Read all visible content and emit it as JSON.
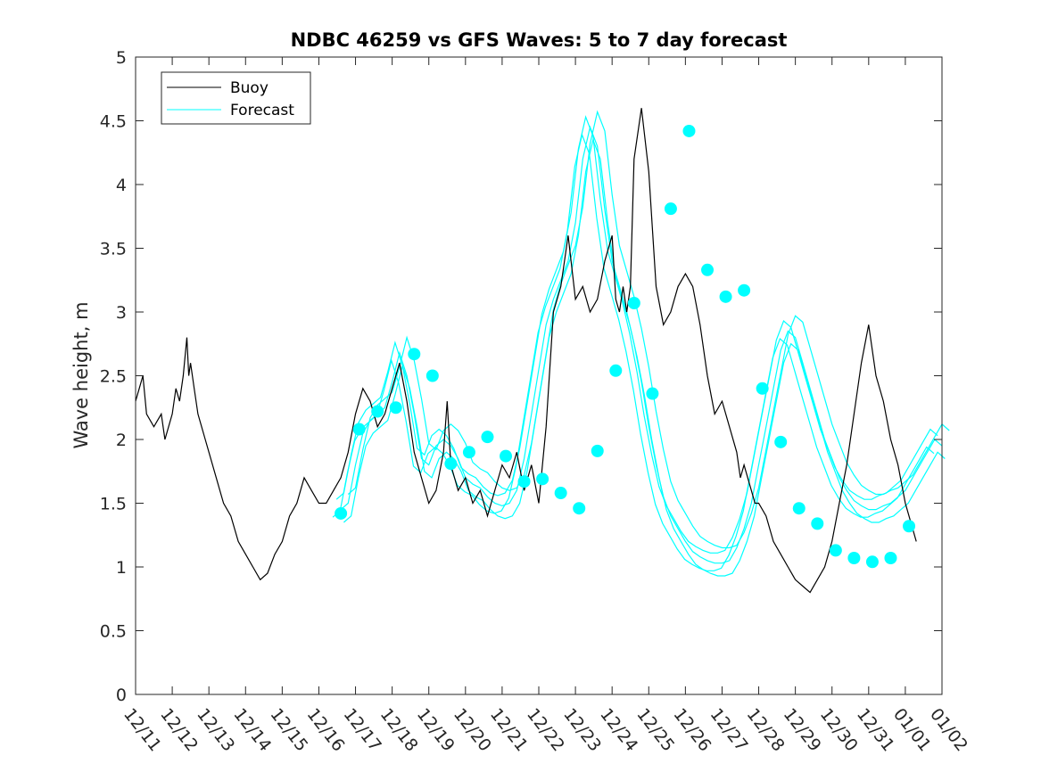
{
  "chart_data": {
    "type": "line",
    "title": "NDBC 46259 vs GFS Waves: 5 to 7 day forecast",
    "xlabel": "",
    "ylabel": "Wave height, m",
    "xlim": [
      0,
      22
    ],
    "ylim": [
      0,
      5
    ],
    "yticks": [
      "0",
      "0.5",
      "1",
      "1.5",
      "2",
      "2.5",
      "3",
      "3.5",
      "4",
      "4.5",
      "5"
    ],
    "xticks": [
      "12/11",
      "12/12",
      "12/13",
      "12/14",
      "12/15",
      "12/16",
      "12/17",
      "12/18",
      "12/19",
      "12/20",
      "12/21",
      "12/22",
      "12/23",
      "12/24",
      "12/25",
      "12/26",
      "12/27",
      "12/28",
      "12/29",
      "12/30",
      "12/31",
      "01/01",
      "01/02"
    ],
    "legend": {
      "position": "top-left",
      "entries": [
        "Buoy",
        "Forecast"
      ]
    },
    "colors": {
      "buoy": "#000000",
      "forecast": "#00ffff",
      "axis": "#262626"
    },
    "series": [
      {
        "name": "Buoy",
        "x": [
          0,
          0.1,
          0.2,
          0.3,
          0.5,
          0.7,
          0.8,
          0.9,
          1.0,
          1.1,
          1.2,
          1.3,
          1.4,
          1.45,
          1.5,
          1.6,
          1.7,
          1.8,
          1.9,
          2.0,
          2.2,
          2.4,
          2.6,
          2.8,
          3.0,
          3.2,
          3.4,
          3.6,
          3.8,
          4.0,
          4.2,
          4.4,
          4.6,
          4.8,
          5.0,
          5.2,
          5.4,
          5.6,
          5.8,
          6.0,
          6.2,
          6.4,
          6.6,
          6.8,
          7.0,
          7.2,
          7.4,
          7.6,
          7.8,
          8.0,
          8.2,
          8.4,
          8.5,
          8.6,
          8.8,
          9.0,
          9.2,
          9.4,
          9.6,
          9.8,
          10.0,
          10.2,
          10.4,
          10.6,
          10.8,
          11.0,
          11.2,
          11.4,
          11.6,
          11.8,
          12.0,
          12.2,
          12.4,
          12.6,
          12.8,
          13.0,
          13.1,
          13.2,
          13.3,
          13.4,
          13.5,
          13.6,
          13.8,
          14.0,
          14.2,
          14.4,
          14.6,
          14.8,
          15.0,
          15.2,
          15.4,
          15.6,
          15.8,
          16.0,
          16.2,
          16.4,
          16.5,
          16.6,
          16.7,
          16.8,
          16.9,
          17.0,
          17.2,
          17.4,
          17.6,
          17.8,
          18.0,
          18.2,
          18.4,
          18.6,
          18.8,
          19.0,
          19.2,
          19.4,
          19.6,
          19.8,
          20.0,
          20.2,
          20.4,
          20.6,
          20.8,
          21.0,
          21.1,
          21.2,
          21.3
        ],
        "values": [
          2.3,
          2.4,
          2.5,
          2.2,
          2.1,
          2.2,
          2.0,
          2.1,
          2.2,
          2.4,
          2.3,
          2.5,
          2.8,
          2.5,
          2.6,
          2.4,
          2.2,
          2.1,
          2.0,
          1.9,
          1.7,
          1.5,
          1.4,
          1.2,
          1.1,
          1.0,
          0.9,
          0.95,
          1.1,
          1.2,
          1.4,
          1.5,
          1.7,
          1.6,
          1.5,
          1.5,
          1.6,
          1.7,
          1.9,
          2.2,
          2.4,
          2.3,
          2.1,
          2.2,
          2.4,
          2.6,
          2.3,
          1.9,
          1.7,
          1.5,
          1.6,
          1.9,
          2.3,
          1.8,
          1.6,
          1.7,
          1.5,
          1.6,
          1.4,
          1.6,
          1.8,
          1.7,
          1.9,
          1.6,
          1.8,
          1.5,
          2.1,
          3.0,
          3.2,
          3.6,
          3.1,
          3.2,
          3.0,
          3.1,
          3.4,
          3.6,
          3.1,
          3.0,
          3.2,
          3.0,
          3.2,
          4.2,
          4.6,
          4.1,
          3.2,
          2.9,
          3.0,
          3.2,
          3.3,
          3.2,
          2.9,
          2.5,
          2.2,
          2.3,
          2.1,
          1.9,
          1.7,
          1.8,
          1.7,
          1.6,
          1.5,
          1.5,
          1.4,
          1.2,
          1.1,
          1.0,
          0.9,
          0.85,
          0.8,
          0.9,
          1.0,
          1.2,
          1.5,
          1.8,
          2.2,
          2.6,
          2.9,
          2.5,
          2.3,
          2.0,
          1.8,
          1.5,
          1.4,
          1.3,
          1.2
        ]
      },
      {
        "name": "Forecast",
        "x": [
          5.6,
          5.8,
          6.0,
          6.2,
          6.4,
          6.6,
          6.8,
          7.0,
          7.2,
          7.4,
          7.6,
          7.8,
          8.0,
          8.2,
          8.4,
          8.6,
          8.8,
          9.0,
          9.2,
          9.4,
          9.6,
          9.8,
          10.0,
          10.2,
          10.4,
          10.6,
          10.8,
          11.0,
          11.2,
          11.4,
          11.6,
          11.8,
          12.0,
          12.2,
          12.4,
          12.6,
          12.8,
          13.0,
          13.2,
          13.4,
          13.6,
          13.8,
          14.0,
          14.2,
          14.4,
          14.6,
          14.8,
          15.0,
          15.2,
          15.4,
          15.6,
          15.8,
          16.0,
          16.2,
          16.4,
          16.6,
          16.8,
          17.0,
          17.2,
          17.4,
          17.6,
          17.8,
          18.0,
          18.2,
          18.4,
          18.6,
          18.8,
          19.0,
          19.2,
          19.4,
          19.6,
          19.8,
          20.0,
          20.2,
          20.4,
          20.6,
          20.8,
          21.0,
          21.2,
          21.4,
          21.6,
          21.8,
          22.0
        ],
        "values": [
          1.45,
          1.5,
          1.8,
          2.05,
          2.15,
          2.2,
          2.25,
          2.45,
          2.68,
          2.5,
          2.2,
          1.85,
          1.8,
          1.95,
          2.0,
          1.95,
          1.85,
          1.7,
          1.65,
          1.62,
          1.55,
          1.5,
          1.48,
          1.5,
          1.6,
          1.85,
          2.2,
          2.55,
          2.9,
          3.1,
          3.25,
          3.4,
          3.7,
          4.2,
          4.45,
          4.3,
          3.8,
          3.4,
          3.2,
          3.0,
          2.75,
          2.45,
          2.1,
          1.8,
          1.55,
          1.4,
          1.3,
          1.2,
          1.12,
          1.08,
          1.05,
          1.03,
          1.03,
          1.05,
          1.15,
          1.3,
          1.5,
          1.8,
          2.1,
          2.4,
          2.7,
          2.85,
          2.8,
          2.6,
          2.4,
          2.2,
          2.0,
          1.85,
          1.7,
          1.6,
          1.52,
          1.48,
          1.45,
          1.45,
          1.48,
          1.5,
          1.55,
          1.6,
          1.7,
          1.8,
          1.9,
          2.0,
          1.95
        ]
      },
      {
        "name": "Forecast markers",
        "x": [
          5.6,
          6.1,
          6.6,
          7.1,
          7.6,
          8.1,
          8.6,
          9.1,
          9.6,
          10.1,
          10.6,
          11.1,
          11.6,
          12.1,
          12.6,
          13.1,
          13.6,
          14.1,
          14.6,
          15.1,
          15.6,
          16.1,
          16.6,
          17.1,
          17.6,
          18.1,
          18.6,
          19.1,
          19.6,
          20.1,
          20.6,
          21.1
        ],
        "values": [
          1.42,
          2.08,
          2.22,
          2.25,
          2.67,
          2.5,
          1.81,
          1.9,
          2.02,
          1.87,
          1.67,
          1.69,
          1.58,
          1.46,
          1.91,
          2.54,
          3.07,
          2.36,
          3.81,
          4.42,
          3.33,
          3.12,
          3.17,
          2.4,
          1.98,
          1.46,
          1.34,
          1.13,
          1.07,
          1.04,
          1.07,
          1.32
        ]
      }
    ]
  }
}
